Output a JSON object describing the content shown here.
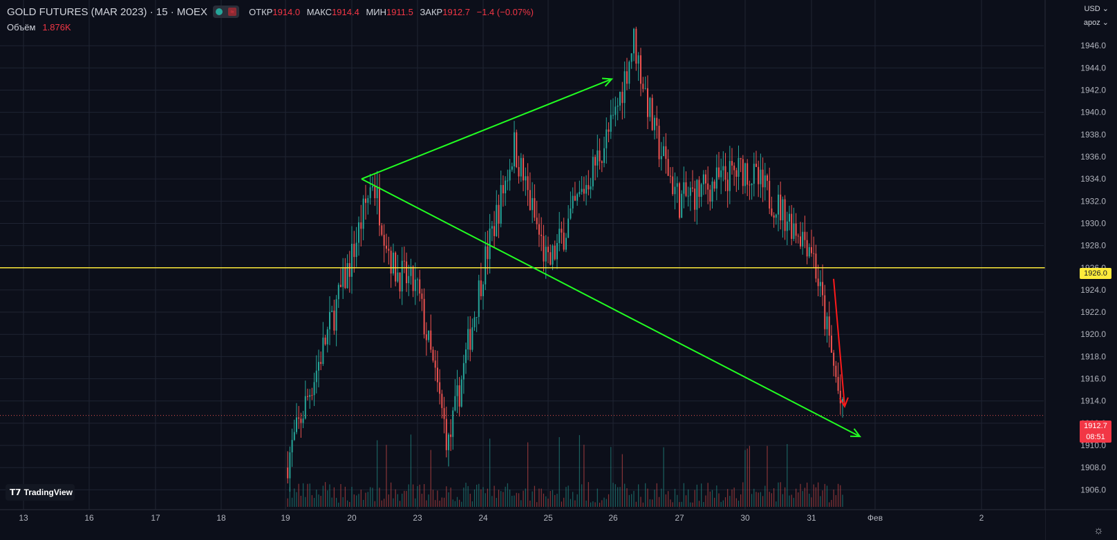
{
  "header": {
    "symbol": "GOLD FUTURES (MAR 2023) · 15 · MOEX",
    "open_label": "ОТКР",
    "open": "1914.0",
    "high_label": "МАКС",
    "high": "1914.4",
    "low_label": "МИН",
    "low": "1911.5",
    "close_label": "ЗАКР",
    "close": "1912.7",
    "change": "−1.4 (−0.07%)"
  },
  "volume": {
    "label": "Объём",
    "value": "1.876K"
  },
  "axis_controls": {
    "currency": "USD",
    "scale": "арoz"
  },
  "logo": {
    "text": "TradingView"
  },
  "colors": {
    "up": "#26a69a",
    "down": "#ef5350",
    "support_line": "#ffeb3b",
    "trend_lines": "#22ff22",
    "forecast_arrow": "#ff1a1a"
  },
  "chart_data": {
    "type": "candlestick",
    "title": "GOLD FUTURES (MAR 2023) · 15 · MOEX",
    "x_ticks": [
      "13",
      "16",
      "17",
      "18",
      "19",
      "20",
      "23",
      "24",
      "25",
      "26",
      "27",
      "30",
      "31",
      "Фев",
      "2"
    ],
    "y_ticks": [
      1906.0,
      1908.0,
      1910.0,
      1912.0,
      1914.0,
      1916.0,
      1918.0,
      1920.0,
      1922.0,
      1924.0,
      1926.0,
      1928.0,
      1930.0,
      1932.0,
      1934.0,
      1936.0,
      1938.0,
      1940.0,
      1942.0,
      1944.0,
      1946.0
    ],
    "ylim": [
      1904.4,
      1949.0
    ],
    "grid": true,
    "price_path": [
      {
        "x": "19",
        "y": 1908.0
      },
      {
        "x": "20",
        "y": 1927.0
      },
      {
        "x": "20",
        "y": 1934.0
      },
      {
        "x": "20",
        "y": 1926.0
      },
      {
        "x": "23",
        "y": 1924.0
      },
      {
        "x": "23",
        "y": 1910.0
      },
      {
        "x": "24",
        "y": 1926.0
      },
      {
        "x": "24",
        "y": 1937.0
      },
      {
        "x": "25",
        "y": 1926.0
      },
      {
        "x": "26",
        "y": 1939.0
      },
      {
        "x": "26",
        "y": 1946.5
      },
      {
        "x": "26",
        "y": 1938.0
      },
      {
        "x": "27",
        "y": 1932.0
      },
      {
        "x": "30",
        "y": 1935.0
      },
      {
        "x": "31",
        "y": 1928.0
      },
      {
        "x": "31",
        "y": 1912.7
      }
    ],
    "support_level": "1926.0",
    "last_price": "1912.7",
    "countdown": "08:51",
    "annotations": [
      {
        "type": "trend-line",
        "from": {
          "x": "20",
          "y": 1934.0
        },
        "to": {
          "x": "26",
          "y": 1943.0
        }
      },
      {
        "type": "trend-line",
        "from": {
          "x": "20",
          "y": 1934.0
        },
        "to": {
          "x": "31",
          "y": 1911.0
        }
      },
      {
        "type": "arrow",
        "from": {
          "x": "31",
          "y": 1925.0
        },
        "to": {
          "x": "31",
          "y": 1913.5
        }
      }
    ]
  }
}
